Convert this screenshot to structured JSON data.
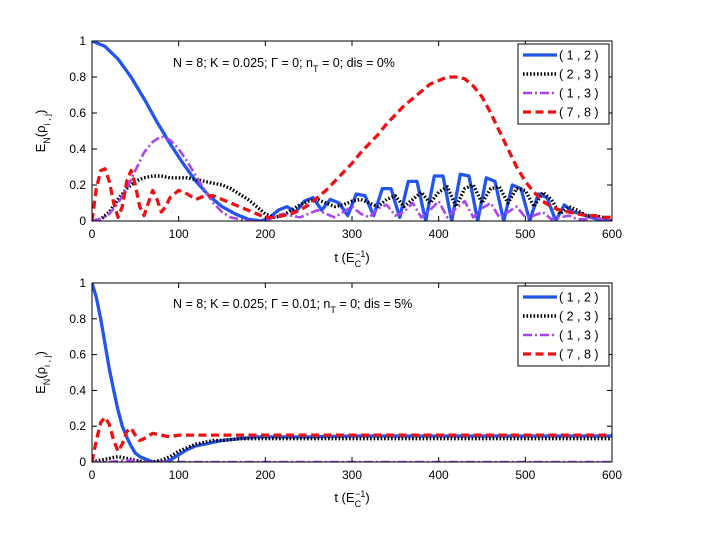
{
  "colors": {
    "s12": "#2255ee",
    "s23": "#000000",
    "s13": "#aa44ee",
    "s78": "#ee1111"
  },
  "chart_data": [
    {
      "type": "line",
      "annotation": "N = 8; K = 0.025; Γ = 0; nₜ = 0; dis = 0%",
      "annotation_parts": {
        "pre": "N = 8; K = 0.025; Γ = 0; n",
        "sub": "T",
        "post": " = 0; dis = 0%"
      },
      "xlabel": {
        "pre": "t (E",
        "sub": "C",
        "sup": "−1",
        "post": ")"
      },
      "ylabel": {
        "pre": "E",
        "sub1": "N",
        "mid": "(ρ",
        "sub2": "i , j",
        "post": ")"
      },
      "xlim": [
        0,
        600
      ],
      "ylim": [
        0,
        1
      ],
      "xticks": [
        "0",
        "100",
        "200",
        "300",
        "400",
        "500",
        "600"
      ],
      "yticks": [
        "0",
        "0.2",
        "0.4",
        "0.6",
        "0.8",
        "1"
      ],
      "legend_position": "top-right",
      "series": [
        {
          "name": "( 1 , 2 )",
          "style": "solid",
          "color_key": "s12",
          "x": [
            0,
            15,
            30,
            45,
            60,
            75,
            90,
            105,
            120,
            135,
            150,
            165,
            180,
            195,
            205,
            215,
            225,
            235,
            245,
            255,
            265,
            275,
            285,
            295,
            305,
            315,
            325,
            335,
            345,
            355,
            365,
            375,
            385,
            395,
            405,
            415,
            425,
            435,
            445,
            455,
            465,
            475,
            485,
            495,
            505,
            515,
            525,
            535,
            545,
            555,
            565,
            575,
            585,
            600
          ],
          "y": [
            1.0,
            0.97,
            0.9,
            0.8,
            0.68,
            0.55,
            0.43,
            0.32,
            0.22,
            0.14,
            0.08,
            0.04,
            0.01,
            0.0,
            0.02,
            0.06,
            0.08,
            0.05,
            0.11,
            0.13,
            0.06,
            0.12,
            0.1,
            0.03,
            0.15,
            0.14,
            0.03,
            0.18,
            0.18,
            0.02,
            0.22,
            0.22,
            0.0,
            0.25,
            0.25,
            0.0,
            0.26,
            0.25,
            0.0,
            0.24,
            0.22,
            0.0,
            0.2,
            0.18,
            0.0,
            0.15,
            0.13,
            0.0,
            0.09,
            0.05,
            0.04,
            0.02,
            0.01,
            0.0
          ]
        },
        {
          "name": "( 2 , 3 )",
          "style": "dotted",
          "color_key": "s23",
          "x": [
            0,
            10,
            20,
            30,
            40,
            50,
            60,
            70,
            80,
            90,
            100,
            110,
            120,
            130,
            140,
            150,
            160,
            170,
            180,
            190,
            200,
            210,
            220,
            230,
            240,
            250,
            260,
            270,
            280,
            290,
            300,
            310,
            320,
            330,
            340,
            350,
            360,
            370,
            380,
            390,
            400,
            410,
            420,
            430,
            440,
            450,
            460,
            470,
            480,
            490,
            500,
            510,
            520,
            530,
            540,
            550,
            560,
            570,
            580,
            590,
            600
          ],
          "y": [
            0.0,
            0.01,
            0.05,
            0.12,
            0.18,
            0.22,
            0.24,
            0.25,
            0.25,
            0.24,
            0.24,
            0.24,
            0.23,
            0.22,
            0.21,
            0.2,
            0.18,
            0.15,
            0.12,
            0.08,
            0.04,
            0.02,
            0.03,
            0.06,
            0.09,
            0.11,
            0.12,
            0.1,
            0.08,
            0.09,
            0.11,
            0.12,
            0.1,
            0.08,
            0.12,
            0.14,
            0.08,
            0.12,
            0.16,
            0.1,
            0.16,
            0.19,
            0.08,
            0.18,
            0.2,
            0.1,
            0.18,
            0.19,
            0.1,
            0.18,
            0.17,
            0.08,
            0.16,
            0.12,
            0.04,
            0.08,
            0.06,
            0.03,
            0.03,
            0.02,
            0.02
          ]
        },
        {
          "name": "( 1 , 3 )",
          "style": "dashdot",
          "color_key": "s13",
          "x": [
            0,
            10,
            20,
            30,
            40,
            50,
            60,
            70,
            80,
            90,
            100,
            110,
            120,
            130,
            140,
            150,
            160,
            170,
            180,
            190,
            200,
            210,
            220,
            230,
            240,
            250,
            260,
            270,
            280,
            290,
            300,
            310,
            320,
            330,
            340,
            350,
            360,
            370,
            380,
            390,
            400,
            410,
            420,
            430,
            440,
            450,
            460,
            470,
            480,
            490,
            500,
            510,
            520,
            530,
            540,
            550,
            560,
            570,
            580,
            590,
            600
          ],
          "y": [
            0.0,
            0.01,
            0.04,
            0.1,
            0.18,
            0.28,
            0.38,
            0.44,
            0.47,
            0.45,
            0.4,
            0.33,
            0.25,
            0.17,
            0.1,
            0.05,
            0.02,
            0.01,
            0.0,
            0.0,
            0.0,
            0.02,
            0.04,
            0.03,
            0.02,
            0.04,
            0.06,
            0.04,
            0.02,
            0.05,
            0.08,
            0.04,
            0.02,
            0.07,
            0.09,
            0.03,
            0.05,
            0.1,
            0.02,
            0.06,
            0.11,
            0.02,
            0.07,
            0.11,
            0.02,
            0.07,
            0.1,
            0.02,
            0.05,
            0.08,
            0.02,
            0.03,
            0.05,
            0.01,
            0.02,
            0.03,
            0.01,
            0.01,
            0.02,
            0.01,
            0.01
          ]
        },
        {
          "name": "( 7 , 8 )",
          "style": "dashed",
          "color_key": "s78",
          "x": [
            0,
            5,
            10,
            15,
            20,
            25,
            30,
            35,
            40,
            45,
            50,
            55,
            60,
            65,
            70,
            75,
            80,
            85,
            90,
            100,
            110,
            120,
            130,
            140,
            150,
            160,
            170,
            180,
            190,
            200,
            210,
            220,
            230,
            240,
            250,
            260,
            270,
            280,
            290,
            300,
            310,
            320,
            330,
            340,
            350,
            360,
            370,
            380,
            390,
            400,
            410,
            420,
            430,
            440,
            450,
            460,
            470,
            480,
            490,
            500,
            510,
            520,
            530,
            540,
            550,
            560,
            570,
            580,
            590,
            600
          ],
          "y": [
            0.0,
            0.18,
            0.28,
            0.29,
            0.22,
            0.1,
            0.02,
            0.08,
            0.22,
            0.28,
            0.2,
            0.08,
            0.03,
            0.1,
            0.17,
            0.12,
            0.05,
            0.08,
            0.13,
            0.17,
            0.15,
            0.12,
            0.14,
            0.14,
            0.12,
            0.1,
            0.08,
            0.06,
            0.04,
            0.02,
            0.02,
            0.03,
            0.04,
            0.06,
            0.09,
            0.13,
            0.17,
            0.22,
            0.27,
            0.32,
            0.38,
            0.43,
            0.48,
            0.54,
            0.59,
            0.64,
            0.68,
            0.72,
            0.76,
            0.78,
            0.8,
            0.8,
            0.79,
            0.75,
            0.69,
            0.6,
            0.5,
            0.4,
            0.3,
            0.22,
            0.16,
            0.11,
            0.08,
            0.06,
            0.05,
            0.04,
            0.03,
            0.03,
            0.02,
            0.02
          ]
        }
      ]
    },
    {
      "type": "line",
      "annotation": "N = 8; K = 0.025; Γ = 0.01; nₜ = 0; dis = 5%",
      "annotation_parts": {
        "pre": "N = 8; K = 0.025; Γ = 0.01; n",
        "sub": "T",
        "post": " = 0; dis = 5%"
      },
      "xlabel": {
        "pre": "t (E",
        "sub": "C",
        "sup": "−1",
        "post": ")"
      },
      "ylabel": {
        "pre": "E",
        "sub1": "N",
        "mid": "(ρ",
        "sub2": "i , j",
        "post": ")"
      },
      "xlim": [
        0,
        600
      ],
      "ylim": [
        0,
        1
      ],
      "xticks": [
        "0",
        "100",
        "200",
        "300",
        "400",
        "500",
        "600"
      ],
      "yticks": [
        "0",
        "0.2",
        "0.4",
        "0.6",
        "0.8",
        "1"
      ],
      "legend_position": "top-right",
      "series": [
        {
          "name": "( 1 , 2 )",
          "style": "solid",
          "color_key": "s12",
          "x": [
            0,
            5,
            10,
            15,
            20,
            25,
            30,
            35,
            40,
            45,
            50,
            55,
            60,
            65,
            70,
            75,
            80,
            85,
            90,
            100,
            110,
            120,
            130,
            140,
            150,
            160,
            170,
            180,
            190,
            200,
            220,
            250,
            300,
            350,
            400,
            450,
            500,
            550,
            600
          ],
          "y": [
            1.0,
            0.92,
            0.8,
            0.66,
            0.52,
            0.4,
            0.29,
            0.2,
            0.14,
            0.09,
            0.05,
            0.03,
            0.02,
            0.01,
            0.0,
            0.0,
            0.0,
            0.0,
            0.01,
            0.04,
            0.07,
            0.09,
            0.1,
            0.11,
            0.12,
            0.125,
            0.13,
            0.135,
            0.14,
            0.14,
            0.14,
            0.14,
            0.145,
            0.145,
            0.145,
            0.145,
            0.145,
            0.145,
            0.145
          ]
        },
        {
          "name": "( 2 , 3 )",
          "style": "dotted",
          "color_key": "s23",
          "x": [
            0,
            10,
            20,
            30,
            40,
            50,
            60,
            70,
            80,
            90,
            100,
            110,
            120,
            130,
            140,
            150,
            160,
            170,
            180,
            190,
            200,
            220,
            250,
            300,
            350,
            400,
            450,
            500,
            550,
            600
          ],
          "y": [
            0.0,
            0.01,
            0.02,
            0.03,
            0.02,
            0.01,
            0.0,
            0.0,
            0.01,
            0.03,
            0.06,
            0.08,
            0.1,
            0.11,
            0.12,
            0.12,
            0.125,
            0.13,
            0.13,
            0.13,
            0.13,
            0.13,
            0.13,
            0.13,
            0.13,
            0.13,
            0.13,
            0.13,
            0.13,
            0.13
          ]
        },
        {
          "name": "( 1 , 3 )",
          "style": "dashdot",
          "color_key": "s13",
          "x": [
            0,
            20,
            40,
            60,
            80,
            100,
            200,
            300,
            400,
            500,
            600
          ],
          "y": [
            0.0,
            0.0,
            0.01,
            0.0,
            0.0,
            0.0,
            0.0,
            0.0,
            0.0,
            0.0,
            0.0
          ]
        },
        {
          "name": "( 7 , 8 )",
          "style": "dashed",
          "color_key": "s78",
          "x": [
            0,
            5,
            10,
            15,
            20,
            25,
            30,
            35,
            40,
            45,
            50,
            55,
            60,
            70,
            80,
            90,
            100,
            120,
            150,
            200,
            250,
            300,
            350,
            400,
            450,
            500,
            550,
            600
          ],
          "y": [
            0.0,
            0.12,
            0.22,
            0.25,
            0.21,
            0.12,
            0.06,
            0.1,
            0.17,
            0.19,
            0.15,
            0.12,
            0.13,
            0.16,
            0.15,
            0.14,
            0.15,
            0.15,
            0.15,
            0.15,
            0.15,
            0.15,
            0.15,
            0.15,
            0.15,
            0.15,
            0.15,
            0.15
          ]
        }
      ]
    }
  ]
}
